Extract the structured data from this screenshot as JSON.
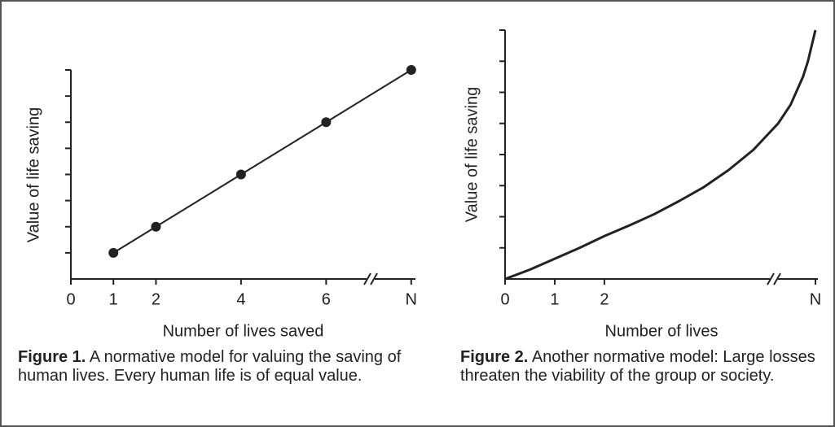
{
  "chart_data": [
    {
      "type": "line",
      "x_label": "Number of lives saved",
      "y_label": "Value of life saving",
      "caption_label": "Figure 1.",
      "caption": "A normative model for valuing the saving of human lives. Every human life is of equal value.",
      "x": [
        1,
        2,
        4,
        6,
        8
      ],
      "values": [
        1,
        2,
        4,
        6,
        8
      ],
      "color": "#222",
      "markers": true,
      "xlim": [
        0,
        8.1
      ],
      "xticks": [
        0,
        1,
        2,
        4,
        6,
        {
          "value": 8,
          "label": "N"
        }
      ],
      "ylim": [
        0,
        8
      ],
      "yticks": [
        1,
        2,
        3,
        4,
        5,
        6,
        7,
        8
      ]
    },
    {
      "type": "line",
      "x_label": "Number of lives",
      "y_label": "Value of life saving",
      "caption_label": "Figure 2.",
      "caption": "Another normative model: Large losses threaten the viability of the group or society.",
      "x": [
        0,
        0.5,
        1,
        1.5,
        2,
        2.5,
        3,
        3.5,
        4,
        4.5,
        5,
        5.5,
        5.75,
        6,
        6.1,
        6.25
      ],
      "values": [
        0,
        0.3,
        0.65,
        1.0,
        1.38,
        1.72,
        2.08,
        2.5,
        2.95,
        3.5,
        4.15,
        5.0,
        5.6,
        6.5,
        7.0,
        8
      ],
      "color": "#222",
      "markers": false,
      "xlim": [
        0,
        6.3
      ],
      "xticks": [
        0,
        1,
        2,
        {
          "value": 6.25,
          "label": "N"
        }
      ],
      "ylim": [
        0,
        8
      ],
      "yticks": [
        1,
        2,
        3,
        4,
        5,
        6,
        7,
        8
      ]
    }
  ]
}
